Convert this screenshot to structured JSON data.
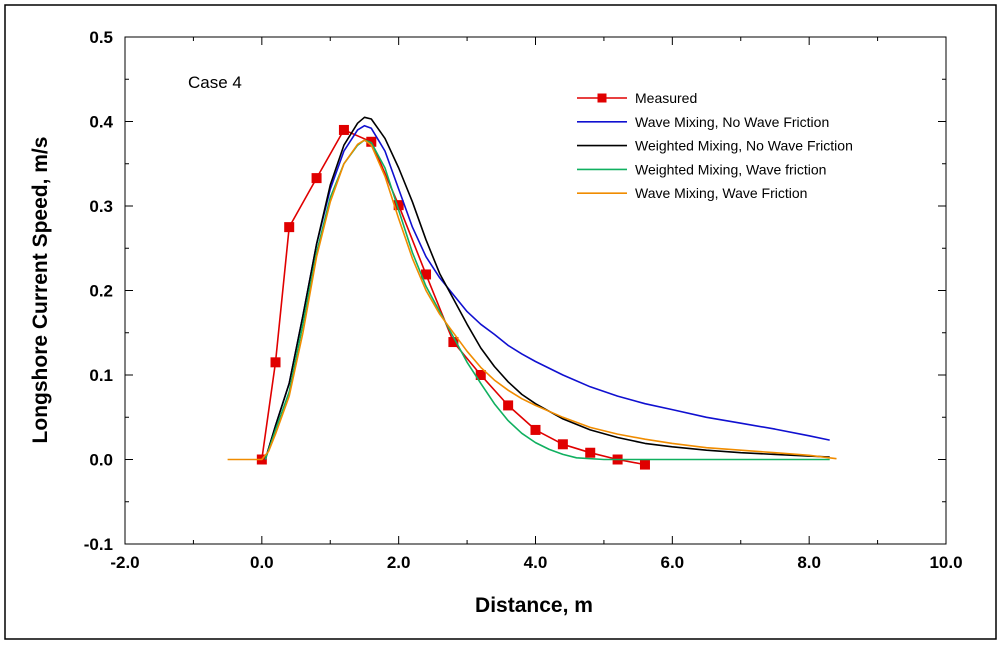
{
  "chart_data": {
    "type": "line",
    "title": "",
    "annotation": "Case 4",
    "xlabel": "Distance, m",
    "ylabel": "Longshore Current Speed, m/s",
    "xlim": [
      -2.0,
      10.0
    ],
    "ylim": [
      -0.1,
      0.5
    ],
    "x_ticks": [
      "-2.0",
      "0.0",
      "2.0",
      "4.0",
      "6.0",
      "8.0",
      "10.0"
    ],
    "y_ticks": [
      "-0.1",
      "0.0",
      "0.1",
      "0.2",
      "0.3",
      "0.4",
      "0.5"
    ],
    "x_tick_values": [
      -2,
      0,
      2,
      4,
      6,
      8,
      10
    ],
    "y_tick_values": [
      -0.1,
      0,
      0.1,
      0.2,
      0.3,
      0.4,
      0.5
    ],
    "x_minor_step": 1.0,
    "y_minor_step": 0.05,
    "grid": false,
    "legend_position": "top-right",
    "series": [
      {
        "name": "Measured",
        "color": "#e00000",
        "marker": "square",
        "x": [
          0.0,
          0.2,
          0.4,
          0.8,
          1.2,
          1.6,
          2.0,
          2.4,
          2.8,
          3.2,
          3.6,
          4.0,
          4.4,
          4.8,
          5.2,
          5.6
        ],
        "y": [
          0.0,
          0.115,
          0.275,
          0.333,
          0.39,
          0.376,
          0.301,
          0.219,
          0.139,
          0.1,
          0.064,
          0.035,
          0.018,
          0.008,
          0.0,
          -0.006
        ]
      },
      {
        "name": "Wave Mixing, No Wave Friction",
        "color": "#1010d0",
        "marker": "none",
        "x": [
          0.05,
          0.2,
          0.4,
          0.6,
          0.8,
          1.0,
          1.2,
          1.4,
          1.5,
          1.6,
          1.8,
          2.0,
          2.2,
          2.4,
          2.6,
          2.8,
          3.0,
          3.2,
          3.4,
          3.6,
          3.8,
          4.0,
          4.4,
          4.8,
          5.2,
          5.6,
          6.0,
          6.5,
          7.0,
          7.5,
          8.0,
          8.3
        ],
        "y": [
          0.0,
          0.04,
          0.09,
          0.17,
          0.255,
          0.32,
          0.365,
          0.39,
          0.395,
          0.392,
          0.365,
          0.32,
          0.275,
          0.24,
          0.215,
          0.195,
          0.175,
          0.16,
          0.148,
          0.135,
          0.125,
          0.116,
          0.1,
          0.086,
          0.075,
          0.066,
          0.059,
          0.05,
          0.043,
          0.036,
          0.028,
          0.023
        ]
      },
      {
        "name": "Weighted Mixing, No Wave Friction",
        "color": "#000000",
        "marker": "none",
        "x": [
          0.05,
          0.2,
          0.4,
          0.6,
          0.8,
          1.0,
          1.2,
          1.4,
          1.5,
          1.6,
          1.8,
          2.0,
          2.2,
          2.4,
          2.6,
          2.8,
          3.0,
          3.2,
          3.4,
          3.6,
          3.8,
          4.0,
          4.4,
          4.8,
          5.2,
          5.6,
          6.0,
          6.5,
          7.0,
          7.5,
          8.0,
          8.3
        ],
        "y": [
          0.0,
          0.04,
          0.09,
          0.17,
          0.255,
          0.325,
          0.372,
          0.398,
          0.405,
          0.403,
          0.38,
          0.345,
          0.305,
          0.26,
          0.22,
          0.19,
          0.16,
          0.132,
          0.11,
          0.092,
          0.077,
          0.066,
          0.048,
          0.035,
          0.026,
          0.019,
          0.015,
          0.011,
          0.008,
          0.006,
          0.004,
          0.003
        ]
      },
      {
        "name": "Weighted Mixing, Wave friction",
        "color": "#10b060",
        "marker": "none",
        "x": [
          0.05,
          0.2,
          0.4,
          0.6,
          0.8,
          1.0,
          1.2,
          1.4,
          1.5,
          1.6,
          1.8,
          2.0,
          2.2,
          2.4,
          2.6,
          2.8,
          3.0,
          3.2,
          3.4,
          3.6,
          3.8,
          4.0,
          4.2,
          4.4,
          4.6,
          5.0,
          6.0,
          7.0,
          8.0,
          8.3
        ],
        "y": [
          0.0,
          0.035,
          0.08,
          0.16,
          0.245,
          0.31,
          0.35,
          0.372,
          0.378,
          0.375,
          0.345,
          0.295,
          0.245,
          0.205,
          0.175,
          0.145,
          0.115,
          0.09,
          0.066,
          0.046,
          0.031,
          0.02,
          0.012,
          0.006,
          0.002,
          0.0,
          0.0,
          0.0,
          0.0,
          0.0
        ]
      },
      {
        "name": "Wave Mixing, Wave Friction",
        "color": "#f08c00",
        "marker": "none",
        "x": [
          -0.5,
          0.0,
          0.1,
          0.2,
          0.4,
          0.6,
          0.8,
          1.0,
          1.2,
          1.4,
          1.5,
          1.6,
          1.8,
          2.0,
          2.2,
          2.4,
          2.6,
          2.8,
          3.0,
          3.2,
          3.4,
          3.6,
          3.8,
          4.0,
          4.4,
          4.8,
          5.2,
          5.6,
          6.0,
          6.5,
          7.0,
          7.5,
          8.0,
          8.4
        ],
        "y": [
          0.0,
          0.0,
          0.01,
          0.03,
          0.075,
          0.15,
          0.24,
          0.305,
          0.35,
          0.373,
          0.378,
          0.372,
          0.335,
          0.285,
          0.238,
          0.2,
          0.172,
          0.15,
          0.128,
          0.109,
          0.094,
          0.082,
          0.072,
          0.064,
          0.05,
          0.038,
          0.03,
          0.024,
          0.019,
          0.014,
          0.011,
          0.008,
          0.005,
          0.001
        ]
      }
    ]
  }
}
